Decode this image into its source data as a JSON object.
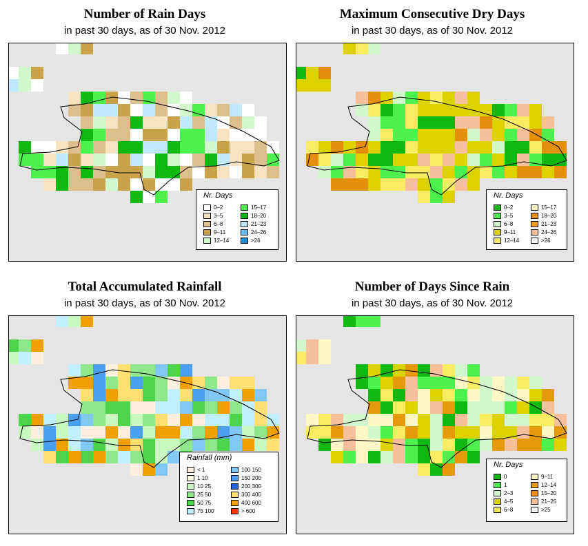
{
  "panels": [
    {
      "id": "rain-days",
      "title": "Number of Rain Days",
      "subtitle": "in past 30 days, as of  30 Nov. 2012",
      "legend": {
        "title": "Nr. Days",
        "items": [
          {
            "label": "0–2",
            "color": "#ffffff"
          },
          {
            "label": "3–5",
            "color": "#f5e3c2"
          },
          {
            "label": "6–8",
            "color": "#dcc08c"
          },
          {
            "label": "9–11",
            "color": "#c8a34a"
          },
          {
            "label": "12–14",
            "color": "#d2f7cc"
          },
          {
            "label": "15–17",
            "color": "#4ef04e"
          },
          {
            "label": "18–20",
            "color": "#12b812"
          },
          {
            "label": "21–23",
            "color": "#bfe9ff"
          },
          {
            "label": "24–26",
            "color": "#64bff0"
          },
          {
            "label": ">26",
            "color": "#1a8cd8"
          }
        ]
      }
    },
    {
      "id": "dry-days",
      "title": "Maximum Consecutive Dry Days",
      "subtitle": "in past 30 days, as of  30 Nov. 2012",
      "legend": {
        "title": "Nr. Days",
        "items": [
          {
            "label": "0–2",
            "color": "#12b812"
          },
          {
            "label": "3–5",
            "color": "#4ef04e"
          },
          {
            "label": "6–8",
            "color": "#d2f7cc"
          },
          {
            "label": "9–11",
            "color": "#dcd200"
          },
          {
            "label": "12–14",
            "color": "#f8ec62"
          },
          {
            "label": "15–17",
            "color": "#fff8c4"
          },
          {
            "label": "18–20",
            "color": "#e4900a"
          },
          {
            "label": "21–23",
            "color": "#f09a1c"
          },
          {
            "label": "24–26",
            "color": "#f8c09a"
          },
          {
            "label": ">26",
            "color": "#ffffff"
          }
        ]
      }
    },
    {
      "id": "rainfall",
      "title": "Total Accumulated Rainfall",
      "subtitle": "in past 30 days, as of  30 Nov. 2012",
      "legend": {
        "title": "Rainfall (mm)",
        "items": [
          {
            "label": "< 1",
            "color": "#fdeedd"
          },
          {
            "label": "1    10",
            "color": "#fff8e0"
          },
          {
            "label": "10    25",
            "color": "#c8f8c0"
          },
          {
            "label": "25    50",
            "color": "#8ee88a"
          },
          {
            "label": "50    75",
            "color": "#4ed44a"
          },
          {
            "label": "75  100",
            "color": "#c0f0ff"
          },
          {
            "label": "100  150",
            "color": "#80c8f8"
          },
          {
            "label": "150  200",
            "color": "#4aa0ee"
          },
          {
            "label": "200  300",
            "color": "#2060d8"
          },
          {
            "label": "300  400",
            "color": "#ffe070"
          },
          {
            "label": "400  600",
            "color": "#f0a000"
          },
          {
            "label": "> 600",
            "color": "#ff3a10"
          }
        ]
      }
    },
    {
      "id": "since-rain",
      "title": "Number of Days Since Rain",
      "subtitle": "in past 30 days, as of  30 Nov. 2012",
      "legend": {
        "title": "Nr. Days",
        "items": [
          {
            "label": "0",
            "color": "#12b812"
          },
          {
            "label": "1",
            "color": "#4ef04e"
          },
          {
            "label": "2–3",
            "color": "#d2f7cc"
          },
          {
            "label": "4–5",
            "color": "#dcd200"
          },
          {
            "label": "6–8",
            "color": "#f8ec62"
          },
          {
            "label": "9–11",
            "color": "#fff8c4"
          },
          {
            "label": "12–14",
            "color": "#e49a0a"
          },
          {
            "label": "15–20",
            "color": "#f08c10"
          },
          {
            "label": "21–25",
            "color": "#f8c09a"
          },
          {
            "label": ">25",
            "color": "#ffffff"
          }
        ]
      }
    }
  ]
}
